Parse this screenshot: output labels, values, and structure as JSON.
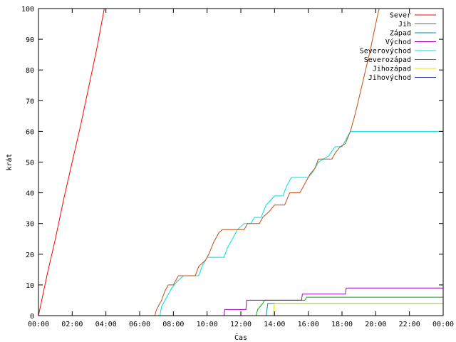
{
  "chart_data": {
    "type": "line",
    "xlabel": "Čas",
    "ylabel": "krát",
    "xlim": [
      0,
      24
    ],
    "ylim": [
      0,
      100
    ],
    "x_ticks": [
      {
        "value": 0,
        "label": "00:00"
      },
      {
        "value": 2,
        "label": "02:00"
      },
      {
        "value": 4,
        "label": "04:00"
      },
      {
        "value": 6,
        "label": "06:00"
      },
      {
        "value": 8,
        "label": "08:00"
      },
      {
        "value": 10,
        "label": "10:00"
      },
      {
        "value": 12,
        "label": "12:00"
      },
      {
        "value": 14,
        "label": "14:00"
      },
      {
        "value": 16,
        "label": "16:00"
      },
      {
        "value": 18,
        "label": "18:00"
      },
      {
        "value": 20,
        "label": "20:00"
      },
      {
        "value": 22,
        "label": "22:00"
      },
      {
        "value": 24,
        "label": "00:00"
      }
    ],
    "y_ticks": [
      {
        "value": 0,
        "label": "0"
      },
      {
        "value": 10,
        "label": "10"
      },
      {
        "value": 20,
        "label": "20"
      },
      {
        "value": 30,
        "label": "30"
      },
      {
        "value": 40,
        "label": "40"
      },
      {
        "value": 50,
        "label": "50"
      },
      {
        "value": 60,
        "label": "60"
      },
      {
        "value": 70,
        "label": "70"
      },
      {
        "value": 80,
        "label": "80"
      },
      {
        "value": 90,
        "label": "90"
      },
      {
        "value": 100,
        "label": "100"
      }
    ],
    "grid": false,
    "legend_position": "top-right",
    "series": [
      {
        "name": "Sever",
        "color": "#ff0000",
        "points": [
          [
            0.0,
            0
          ],
          [
            0.5,
            13
          ],
          [
            1.0,
            25
          ],
          [
            1.5,
            38
          ],
          [
            2.0,
            50
          ],
          [
            2.5,
            62
          ],
          [
            3.0,
            75
          ],
          [
            3.5,
            88
          ],
          [
            3.9,
            100
          ]
        ]
      },
      {
        "name": "Jih",
        "color": "#00b000",
        "points": [
          [
            12.9,
            0
          ],
          [
            13.0,
            2
          ],
          [
            13.3,
            4
          ],
          [
            13.4,
            5
          ],
          [
            15.8,
            5
          ],
          [
            15.9,
            6
          ],
          [
            24.0,
            6
          ]
        ]
      },
      {
        "name": "Západ",
        "color": "#0090a0",
        "points": [
          [
            13.5,
            0
          ],
          [
            13.6,
            4
          ],
          [
            24.0,
            4
          ]
        ]
      },
      {
        "name": "Východ",
        "color": "#a000c0",
        "points": [
          [
            11.0,
            0
          ],
          [
            11.05,
            2
          ],
          [
            12.3,
            2
          ],
          [
            12.35,
            5
          ],
          [
            15.6,
            5
          ],
          [
            15.65,
            7
          ],
          [
            18.2,
            7
          ],
          [
            18.25,
            9
          ],
          [
            24.0,
            9
          ]
        ]
      },
      {
        "name": "Severovýchod",
        "color": "#00e0e0",
        "points": [
          [
            7.2,
            0
          ],
          [
            7.3,
            3
          ],
          [
            7.6,
            6
          ],
          [
            7.9,
            9
          ],
          [
            8.2,
            11
          ],
          [
            8.6,
            13
          ],
          [
            9.5,
            13
          ],
          [
            9.7,
            16
          ],
          [
            10.0,
            19
          ],
          [
            11.0,
            19
          ],
          [
            11.2,
            22
          ],
          [
            11.5,
            25
          ],
          [
            11.8,
            28
          ],
          [
            12.2,
            30
          ],
          [
            12.6,
            30
          ],
          [
            12.8,
            32
          ],
          [
            13.2,
            32
          ],
          [
            13.5,
            36
          ],
          [
            14.0,
            39
          ],
          [
            14.5,
            39
          ],
          [
            14.7,
            42
          ],
          [
            15.0,
            45
          ],
          [
            16.0,
            45
          ],
          [
            16.3,
            47
          ],
          [
            16.6,
            50
          ],
          [
            17.2,
            52
          ],
          [
            17.6,
            55
          ],
          [
            18.0,
            55
          ],
          [
            18.2,
            57
          ],
          [
            18.5,
            60
          ],
          [
            24.0,
            60
          ]
        ]
      },
      {
        "name": "Severozápad",
        "color": "#c05010",
        "points": [
          [
            6.9,
            0
          ],
          [
            7.0,
            2
          ],
          [
            7.3,
            5
          ],
          [
            7.5,
            8
          ],
          [
            7.7,
            10
          ],
          [
            8.0,
            10
          ],
          [
            8.3,
            13
          ],
          [
            9.3,
            13
          ],
          [
            9.5,
            16
          ],
          [
            9.9,
            18
          ],
          [
            10.1,
            20
          ],
          [
            10.4,
            24
          ],
          [
            10.7,
            27
          ],
          [
            10.9,
            28
          ],
          [
            12.2,
            28
          ],
          [
            12.4,
            30
          ],
          [
            13.1,
            30
          ],
          [
            13.3,
            32
          ],
          [
            13.7,
            34
          ],
          [
            14.0,
            36
          ],
          [
            14.6,
            36
          ],
          [
            14.9,
            40
          ],
          [
            15.5,
            40
          ],
          [
            15.8,
            43
          ],
          [
            16.1,
            46
          ],
          [
            16.4,
            48
          ],
          [
            16.6,
            51
          ],
          [
            17.4,
            51
          ],
          [
            17.6,
            53
          ],
          [
            17.9,
            55
          ],
          [
            18.2,
            56
          ],
          [
            18.5,
            60
          ],
          [
            18.8,
            66
          ],
          [
            19.1,
            73
          ],
          [
            19.4,
            80
          ],
          [
            19.7,
            87
          ],
          [
            20.0,
            95
          ],
          [
            20.2,
            100
          ]
        ]
      },
      {
        "name": "Jihozápad",
        "color": "#f0e000",
        "points": [
          [
            13.9,
            0
          ],
          [
            14.0,
            4
          ],
          [
            24.0,
            4
          ]
        ]
      },
      {
        "name": "Jihovýchod",
        "color": "#2020a0",
        "points": [
          [
            24.0,
            0
          ]
        ]
      }
    ]
  }
}
